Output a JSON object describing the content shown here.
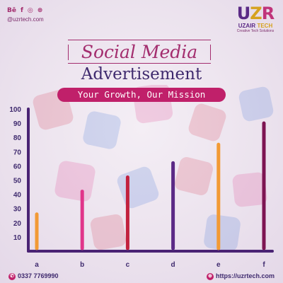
{
  "header": {
    "social_icons": [
      "behance-icon",
      "facebook-icon",
      "instagram-icon",
      "dribbble-icon"
    ],
    "social_glyphs": [
      "Bē",
      "f",
      "◎",
      "⊛"
    ],
    "handle": "@uzrtech.com"
  },
  "logo": {
    "mark_u": "U",
    "mark_z": "Z",
    "mark_r": "R",
    "name_a": "UZAIR",
    "name_b": "TECH",
    "tagline": "Creative Tech Solutions"
  },
  "titles": {
    "line1": "Social Media",
    "line2": "Advertisement",
    "tagline": "Your Growth, Our Mission"
  },
  "chart_data": {
    "type": "bar",
    "categories": [
      "a",
      "b",
      "c",
      "d",
      "e",
      "f"
    ],
    "values": [
      26,
      42,
      52,
      62,
      75,
      90
    ],
    "colors": [
      "#f29a35",
      "#e0358a",
      "#c2213e",
      "#5b2a86",
      "#f29a35",
      "#7d1452"
    ],
    "yticks": [
      10,
      20,
      30,
      40,
      50,
      60,
      70,
      80,
      90,
      100
    ],
    "ylim": [
      0,
      100
    ],
    "axis_color": "#4a2374",
    "grid": false
  },
  "footer": {
    "phone": "0337 7769990",
    "website": "https://uzrtech.com"
  },
  "colors": {
    "accent": "#c0206a",
    "primary": "#3f2a6e",
    "gold": "#d6a21f"
  }
}
